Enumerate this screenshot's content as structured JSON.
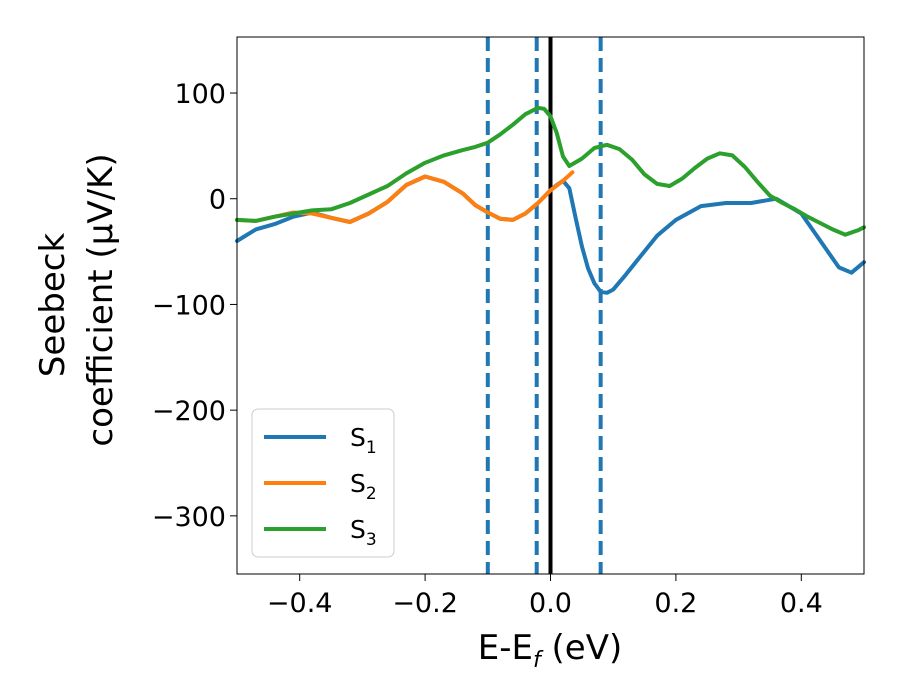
{
  "chart_data": {
    "type": "line",
    "xlabel": {
      "main": "E-E",
      "sub": "f",
      "rest": " (eV)"
    },
    "ylabel": {
      "line1": "Seebeck",
      "line2": "coefficient  (μV/K)"
    },
    "xlim": [
      -0.5,
      0.5
    ],
    "ylim": [
      -355,
      153
    ],
    "xticks": [
      -0.4,
      -0.2,
      0.0,
      0.2,
      0.4
    ],
    "xtick_labels": [
      "−0.4",
      "−0.2",
      "0.0",
      "0.2",
      "0.4"
    ],
    "yticks": [
      100,
      0,
      -100,
      -200,
      -300
    ],
    "ytick_labels": [
      "100",
      "0",
      "−100",
      "−200",
      "−300"
    ],
    "grid": false,
    "legend_position": "lower-left",
    "vlines": [
      {
        "x": -0.1,
        "style": "dashed",
        "color": "#1f77b4"
      },
      {
        "x": -0.022,
        "style": "dashed",
        "color": "#1f77b4"
      },
      {
        "x": 0.0,
        "style": "solid",
        "color": "#000000"
      },
      {
        "x": 0.08,
        "style": "dashed",
        "color": "#1f77b4"
      }
    ],
    "series": [
      {
        "name": "S",
        "subscript": "1",
        "color": "#1f77b4",
        "points": [
          [
            -0.5,
            -40
          ],
          [
            -0.47,
            -29
          ],
          [
            -0.44,
            -24
          ],
          [
            -0.41,
            -17
          ],
          [
            -0.38,
            -13
          ],
          [
            -0.35,
            -18
          ],
          [
            -0.32,
            -22
          ],
          [
            -0.29,
            -14
          ],
          [
            -0.26,
            -3
          ],
          [
            -0.23,
            13
          ],
          [
            -0.2,
            21
          ],
          [
            -0.17,
            16
          ],
          [
            -0.14,
            5
          ],
          [
            -0.12,
            -6
          ],
          [
            -0.1,
            -13
          ],
          [
            -0.08,
            -19
          ],
          [
            -0.06,
            -20
          ],
          [
            -0.04,
            -14
          ],
          [
            -0.02,
            -4
          ],
          [
            0.0,
            8
          ],
          [
            0.01,
            13
          ],
          [
            0.02,
            17
          ],
          [
            0.03,
            10
          ],
          [
            0.04,
            -18
          ],
          [
            0.05,
            -45
          ],
          [
            0.06,
            -66
          ],
          [
            0.07,
            -80
          ],
          [
            0.08,
            -88
          ],
          [
            0.09,
            -89
          ],
          [
            0.1,
            -86
          ],
          [
            0.12,
            -72
          ],
          [
            0.14,
            -57
          ],
          [
            0.17,
            -35
          ],
          [
            0.2,
            -20
          ],
          [
            0.24,
            -7
          ],
          [
            0.28,
            -4
          ],
          [
            0.32,
            -4
          ],
          [
            0.36,
            0
          ],
          [
            0.4,
            -14
          ],
          [
            0.44,
            -48
          ],
          [
            0.46,
            -65
          ],
          [
            0.48,
            -70
          ],
          [
            0.5,
            -60
          ]
        ]
      },
      {
        "name": "S",
        "subscript": "2",
        "color": "#ff7f0e",
        "points": [
          [
            -0.5,
            -20
          ],
          [
            -0.47,
            -21
          ],
          [
            -0.44,
            -17
          ],
          [
            -0.41,
            -13
          ],
          [
            -0.38,
            -14
          ],
          [
            -0.35,
            -18
          ],
          [
            -0.32,
            -22
          ],
          [
            -0.29,
            -14
          ],
          [
            -0.26,
            -3
          ],
          [
            -0.23,
            13
          ],
          [
            -0.2,
            21
          ],
          [
            -0.17,
            16
          ],
          [
            -0.14,
            5
          ],
          [
            -0.12,
            -6
          ],
          [
            -0.1,
            -13
          ],
          [
            -0.08,
            -19
          ],
          [
            -0.06,
            -20
          ],
          [
            -0.04,
            -14
          ],
          [
            -0.02,
            -4
          ],
          [
            0.0,
            8
          ],
          [
            0.02,
            17
          ],
          [
            0.035,
            25
          ]
        ]
      },
      {
        "name": "S",
        "subscript": "3",
        "color": "#2ca02c",
        "points": [
          [
            -0.5,
            -20
          ],
          [
            -0.47,
            -21
          ],
          [
            -0.44,
            -17
          ],
          [
            -0.41,
            -14
          ],
          [
            -0.38,
            -11
          ],
          [
            -0.35,
            -10
          ],
          [
            -0.32,
            -4
          ],
          [
            -0.29,
            4
          ],
          [
            -0.26,
            12
          ],
          [
            -0.23,
            24
          ],
          [
            -0.2,
            34
          ],
          [
            -0.17,
            41
          ],
          [
            -0.14,
            46
          ],
          [
            -0.12,
            49
          ],
          [
            -0.1,
            53
          ],
          [
            -0.08,
            61
          ],
          [
            -0.06,
            70
          ],
          [
            -0.04,
            80
          ],
          [
            -0.02,
            86
          ],
          [
            -0.01,
            85
          ],
          [
            0.0,
            78
          ],
          [
            0.01,
            62
          ],
          [
            0.02,
            40
          ],
          [
            0.03,
            31
          ],
          [
            0.05,
            38
          ],
          [
            0.07,
            48
          ],
          [
            0.09,
            51
          ],
          [
            0.11,
            47
          ],
          [
            0.13,
            37
          ],
          [
            0.15,
            23
          ],
          [
            0.17,
            14
          ],
          [
            0.19,
            12
          ],
          [
            0.21,
            19
          ],
          [
            0.23,
            29
          ],
          [
            0.25,
            38
          ],
          [
            0.27,
            43
          ],
          [
            0.29,
            41
          ],
          [
            0.31,
            30
          ],
          [
            0.33,
            16
          ],
          [
            0.35,
            3
          ],
          [
            0.37,
            -4
          ],
          [
            0.39,
            -10
          ],
          [
            0.41,
            -17
          ],
          [
            0.43,
            -23
          ],
          [
            0.45,
            -29
          ],
          [
            0.47,
            -34
          ],
          [
            0.49,
            -30
          ],
          [
            0.5,
            -27
          ]
        ]
      }
    ]
  }
}
